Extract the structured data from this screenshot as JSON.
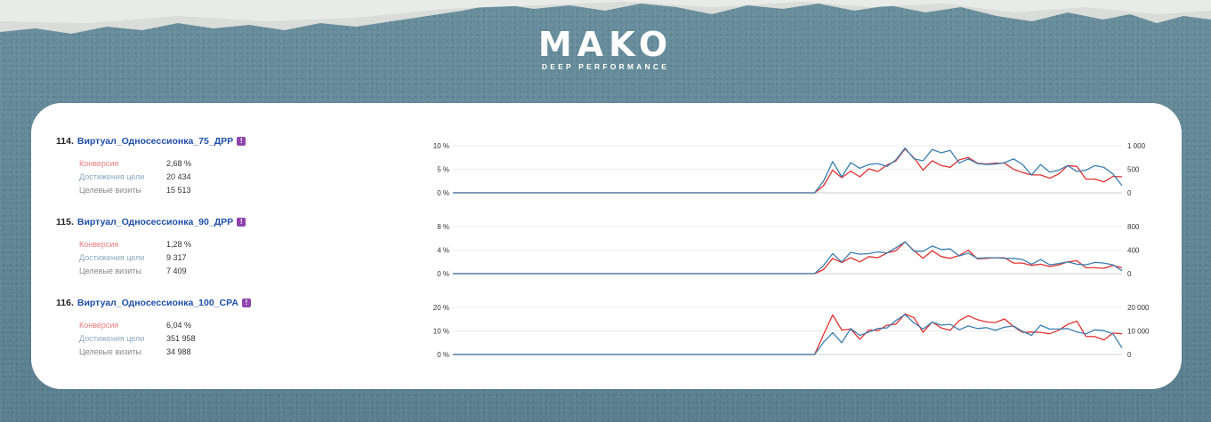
{
  "brand": {
    "name": "MAKO",
    "tagline": "DEEP PERFORMANCE"
  },
  "colors": {
    "conversion": "#e03131",
    "visits": "#3b7fb0",
    "title": "#1f4fa8",
    "badge": "#8e44ad"
  },
  "metric_labels": {
    "conversion": "Конверсия",
    "goals": "Достижения цели",
    "visits": "Целевые визиты"
  },
  "rows": [
    {
      "number": "114.",
      "name": "Виртуал_Односессионка_75_ДРР",
      "badge": "!",
      "conversion": "2,68 %",
      "goals": "20 434",
      "visits": "15 513"
    },
    {
      "number": "115.",
      "name": "Виртуал_Односессионка_90_ДРР",
      "badge": "!",
      "conversion": "1,28 %",
      "goals": "9 317",
      "visits": "7 409"
    },
    {
      "number": "116.",
      "name": "Виртуал_Односессионка_100_CPA",
      "badge": "!",
      "conversion": "6,04 %",
      "goals": "351 958",
      "visits": "34 988"
    }
  ],
  "chart_data": [
    {
      "type": "line",
      "y_left_ticks": [
        "10 %",
        "5 %",
        "0 %"
      ],
      "y_right_ticks": [
        "1 000",
        "500",
        "0"
      ],
      "ylim_left": [
        0,
        10
      ],
      "ylim_right": [
        0,
        1000
      ],
      "grid": true,
      "series": [
        {
          "axis": "left",
          "values": [
            0,
            0,
            0,
            0,
            0,
            0,
            0,
            0,
            0,
            0,
            0,
            0,
            0,
            0,
            0,
            0,
            0,
            0,
            0,
            0,
            0,
            0,
            0,
            0,
            0,
            0,
            0,
            0,
            0,
            0,
            0,
            0,
            0,
            0,
            0,
            0,
            0,
            0,
            0,
            0,
            0,
            1.5,
            4.8,
            3.2,
            4.6,
            3.4,
            5.1,
            4.5,
            5.9,
            6.8,
            9.3,
            7.4,
            4.8,
            6.8,
            5.8,
            5.4,
            7,
            7.5,
            6.3,
            6.1,
            6.3,
            6.3,
            5,
            4.3,
            3.8,
            3.8,
            3.1,
            4,
            5.8,
            5.6,
            2.9,
            2.9,
            2.3,
            3.5,
            3.4
          ]
        },
        {
          "axis": "right",
          "values": [
            0,
            0,
            0,
            0,
            0,
            0,
            0,
            0,
            0,
            0,
            0,
            0,
            0,
            0,
            0,
            0,
            0,
            0,
            0,
            0,
            0,
            0,
            0,
            0,
            0,
            0,
            0,
            0,
            0,
            0,
            0,
            0,
            0,
            0,
            0,
            0,
            0,
            0,
            0,
            0,
            0,
            250,
            660,
            340,
            640,
            520,
            600,
            620,
            560,
            700,
            950,
            720,
            680,
            920,
            850,
            900,
            630,
            720,
            620,
            600,
            610,
            640,
            720,
            600,
            380,
            600,
            440,
            480,
            580,
            450,
            480,
            580,
            540,
            400,
            150
          ]
        }
      ]
    },
    {
      "type": "line",
      "y_left_ticks": [
        "8 %",
        "4 %",
        "0 %"
      ],
      "y_right_ticks": [
        "800",
        "400",
        "0"
      ],
      "ylim_left": [
        0,
        8
      ],
      "ylim_right": [
        0,
        800
      ],
      "grid": true,
      "series": [
        {
          "axis": "left",
          "values": [
            0,
            0,
            0,
            0,
            0,
            0,
            0,
            0,
            0,
            0,
            0,
            0,
            0,
            0,
            0,
            0,
            0,
            0,
            0,
            0,
            0,
            0,
            0,
            0,
            0,
            0,
            0,
            0,
            0,
            0,
            0,
            0,
            0,
            0,
            0,
            0,
            0,
            0,
            0,
            0,
            0,
            0.7,
            2.6,
            1.9,
            2.7,
            2,
            2.9,
            2.7,
            3.5,
            3.9,
            5.4,
            3.9,
            2.6,
            3.9,
            2.9,
            2.6,
            3.1,
            4,
            2.5,
            2.6,
            2.7,
            2.7,
            1.8,
            1.8,
            1.4,
            1.6,
            1.2,
            1.5,
            2,
            2.2,
            1,
            1,
            0.9,
            1.4,
            1
          ]
        },
        {
          "axis": "right",
          "values": [
            0,
            0,
            0,
            0,
            0,
            0,
            0,
            0,
            0,
            0,
            0,
            0,
            0,
            0,
            0,
            0,
            0,
            0,
            0,
            0,
            0,
            0,
            0,
            0,
            0,
            0,
            0,
            0,
            0,
            0,
            0,
            0,
            0,
            0,
            0,
            0,
            0,
            0,
            0,
            0,
            0,
            140,
            340,
            200,
            360,
            330,
            340,
            370,
            350,
            440,
            540,
            380,
            380,
            470,
            410,
            420,
            300,
            350,
            260,
            270,
            270,
            260,
            260,
            240,
            160,
            240,
            150,
            170,
            200,
            160,
            150,
            190,
            180,
            150,
            50
          ]
        }
      ]
    },
    {
      "type": "line",
      "y_left_ticks": [
        "20 %",
        "10 %",
        "0 %"
      ],
      "y_right_ticks": [
        "20 000",
        "10 000",
        "0"
      ],
      "ylim_left": [
        0,
        20
      ],
      "ylim_right": [
        0,
        20000
      ],
      "grid": true,
      "series": [
        {
          "axis": "left",
          "values": [
            0,
            0,
            0,
            0,
            0,
            0,
            0,
            0,
            0,
            0,
            0,
            0,
            0,
            0,
            0,
            0,
            0,
            0,
            0,
            0,
            0,
            0,
            0,
            0,
            0,
            0,
            0,
            0,
            0,
            0,
            0,
            0,
            0,
            0,
            0,
            0,
            0,
            0,
            0,
            0,
            0,
            8.5,
            16.8,
            10.4,
            10.8,
            6.5,
            10.4,
            10.1,
            12.4,
            12.9,
            17.2,
            15.6,
            9.4,
            13.8,
            11.3,
            10.3,
            14.4,
            16.5,
            14.8,
            13.8,
            13.6,
            15.1,
            11.9,
            9.4,
            9.5,
            9.4,
            8.8,
            10.3,
            12.8,
            14.2,
            7.7,
            7.6,
            6.2,
            9.1,
            8.8
          ]
        },
        {
          "axis": "right",
          "values": [
            0,
            0,
            0,
            0,
            0,
            0,
            0,
            0,
            0,
            0,
            0,
            0,
            0,
            0,
            0,
            0,
            0,
            0,
            0,
            0,
            0,
            0,
            0,
            0,
            0,
            0,
            0,
            0,
            0,
            0,
            0,
            0,
            0,
            0,
            0,
            0,
            0,
            0,
            0,
            0,
            0,
            5200,
            9200,
            5000,
            11000,
            8100,
            9500,
            11100,
            11300,
            14400,
            17000,
            13400,
            10800,
            13700,
            12500,
            12800,
            10500,
            12100,
            11000,
            11400,
            10300,
            11600,
            12100,
            9800,
            8100,
            12400,
            10800,
            10800,
            11000,
            9600,
            8700,
            10500,
            10100,
            8800,
            2800
          ]
        }
      ]
    }
  ]
}
